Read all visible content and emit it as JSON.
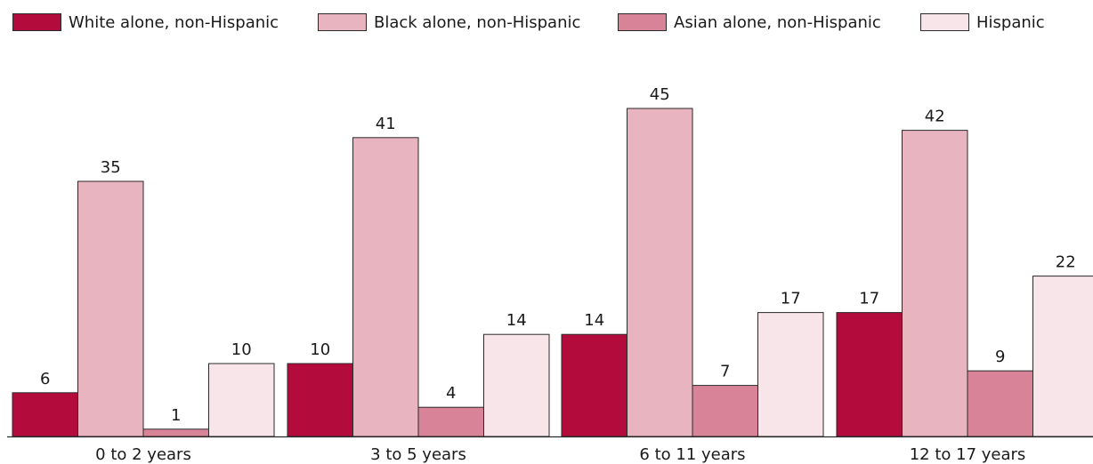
{
  "colors": {
    "white_alone": "#b30b3b",
    "black_alone": "#e8b4c0",
    "asian_alone": "#d98399",
    "hispanic": "#f7e5ea",
    "axis": "#2a2a2a"
  },
  "legend": {
    "items": [
      {
        "label": "White alone, non-Hispanic",
        "color": "#b30b3b"
      },
      {
        "label": "Black alone, non-Hispanic",
        "color": "#e8b4c0"
      },
      {
        "label": "Asian alone, non-Hispanic",
        "color": "#d98399"
      },
      {
        "label": "Hispanic",
        "color": "#f7e5ea"
      }
    ]
  },
  "chart_data": {
    "type": "bar",
    "title": "",
    "xlabel": "",
    "ylabel": "",
    "grid": false,
    "legend_position": "top",
    "ylim": [
      0,
      45
    ],
    "categories": [
      "0 to 2 years",
      "3 to 5 years",
      "6 to 11 years",
      "12 to 17 years"
    ],
    "series": [
      {
        "name": "White alone, non-Hispanic",
        "values": [
          6,
          10,
          14,
          17
        ]
      },
      {
        "name": "Black alone, non-Hispanic",
        "values": [
          35,
          41,
          45,
          42
        ]
      },
      {
        "name": "Asian alone, non-Hispanic",
        "values": [
          1,
          4,
          7,
          9
        ]
      },
      {
        "name": "Hispanic",
        "values": [
          10,
          14,
          17,
          22
        ]
      }
    ]
  }
}
